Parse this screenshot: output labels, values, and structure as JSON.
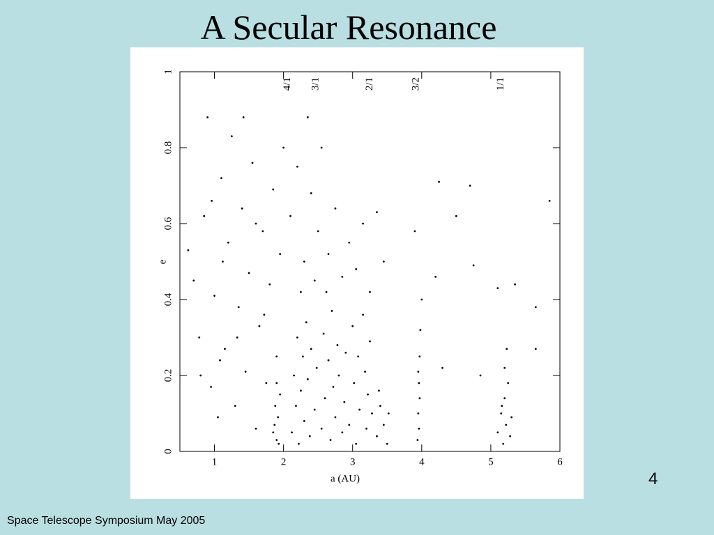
{
  "slide": {
    "title": "A Secular Resonance",
    "footer": "Space Telescope Symposium May 2005",
    "page_number": "4"
  },
  "chart_data": {
    "type": "scatter",
    "xlabel": "a (AU)",
    "ylabel": "e",
    "color": "#000000",
    "xlim": [
      0.5,
      6
    ],
    "ylim": [
      0,
      1
    ],
    "xticks": [
      1,
      2,
      3,
      4,
      5,
      6
    ],
    "yticks": [
      0,
      0.2,
      0.4,
      0.6,
      0.8,
      1
    ],
    "annotations": [
      {
        "text": "4/1",
        "x": 2.06
      },
      {
        "text": "3/1",
        "x": 2.47
      },
      {
        "text": "2/1",
        "x": 3.25
      },
      {
        "text": "3/2",
        "x": 3.92
      },
      {
        "text": "1/1",
        "x": 5.15
      }
    ],
    "x": [
      0.62,
      0.7,
      0.78,
      0.85,
      0.9,
      0.95,
      1.0,
      1.05,
      1.1,
      1.15,
      1.2,
      1.25,
      1.3,
      1.35,
      1.4,
      1.45,
      1.5,
      1.55,
      1.6,
      1.65,
      1.7,
      1.75,
      1.8,
      1.85,
      1.9,
      1.95,
      2.0,
      0.8,
      1.12,
      1.42,
      1.6,
      1.33,
      0.96,
      1.72,
      1.08,
      1.85,
      1.88,
      1.9,
      1.92,
      1.95,
      1.87,
      1.93,
      1.9,
      2.12,
      2.15,
      2.18,
      2.2,
      2.22,
      2.25,
      2.28,
      2.3,
      2.33,
      2.35,
      2.38,
      2.4,
      2.45,
      2.48,
      2.55,
      2.58,
      2.6,
      2.62,
      2.65,
      2.68,
      2.7,
      2.72,
      2.75,
      2.78,
      2.8,
      2.85,
      2.88,
      2.9,
      2.95,
      3.0,
      3.02,
      3.05,
      3.08,
      3.1,
      3.15,
      3.18,
      3.2,
      3.22,
      3.25,
      3.28,
      2.1,
      2.2,
      2.3,
      2.4,
      2.45,
      2.5,
      2.55,
      2.65,
      2.75,
      2.85,
      2.95,
      3.05,
      3.15,
      3.25,
      3.35,
      2.35,
      2.25,
      3.45,
      3.35,
      3.4,
      3.45,
      3.5,
      3.38,
      3.52,
      3.94,
      3.95,
      3.96,
      3.97,
      3.98,
      3.96,
      3.97,
      3.95,
      4.0,
      5.1,
      5.15,
      5.18,
      5.2,
      5.22,
      5.25,
      5.28,
      5.2,
      5.16,
      5.3,
      5.23,
      3.9,
      4.25,
      4.2,
      4.5,
      4.7,
      4.75,
      5.1,
      5.35,
      5.65,
      5.85,
      4.3,
      4.85,
      5.65
    ],
    "values": [
      0.53,
      0.45,
      0.3,
      0.62,
      0.88,
      0.17,
      0.41,
      0.09,
      0.72,
      0.27,
      0.55,
      0.83,
      0.12,
      0.38,
      0.64,
      0.21,
      0.47,
      0.76,
      0.06,
      0.33,
      0.58,
      0.18,
      0.44,
      0.69,
      0.25,
      0.52,
      0.8,
      0.2,
      0.5,
      0.88,
      0.6,
      0.3,
      0.66,
      0.36,
      0.24,
      0.05,
      0.12,
      0.03,
      0.09,
      0.15,
      0.07,
      0.02,
      0.18,
      0.05,
      0.2,
      0.12,
      0.3,
      0.02,
      0.16,
      0.25,
      0.08,
      0.34,
      0.19,
      0.04,
      0.27,
      0.11,
      0.22,
      0.06,
      0.31,
      0.14,
      0.42,
      0.24,
      0.03,
      0.37,
      0.17,
      0.09,
      0.28,
      0.2,
      0.05,
      0.13,
      0.26,
      0.07,
      0.33,
      0.18,
      0.02,
      0.25,
      0.11,
      0.36,
      0.21,
      0.06,
      0.15,
      0.29,
      0.1,
      0.62,
      0.75,
      0.5,
      0.68,
      0.45,
      0.58,
      0.8,
      0.52,
      0.64,
      0.46,
      0.55,
      0.48,
      0.6,
      0.42,
      0.63,
      0.88,
      0.42,
      0.5,
      0.04,
      0.12,
      0.07,
      0.02,
      0.16,
      0.1,
      0.03,
      0.1,
      0.18,
      0.25,
      0.32,
      0.06,
      0.14,
      0.21,
      0.4,
      0.05,
      0.1,
      0.02,
      0.14,
      0.07,
      0.18,
      0.04,
      0.22,
      0.12,
      0.09,
      0.27,
      0.58,
      0.71,
      0.46,
      0.62,
      0.7,
      0.49,
      0.43,
      0.44,
      0.38,
      0.66,
      0.22,
      0.2,
      0.27
    ]
  }
}
